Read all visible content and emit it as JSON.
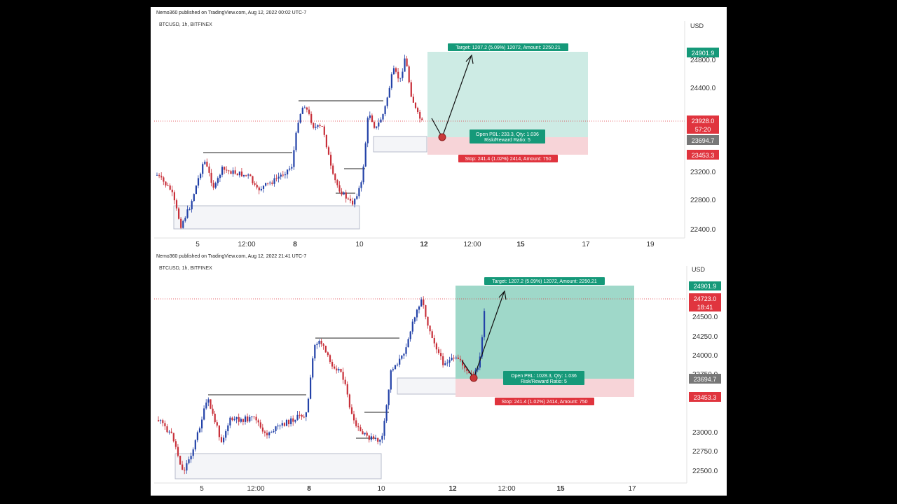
{
  "chart_data": [
    {
      "type": "candlestick",
      "header": "Nemo360 published on TradingView.com, Aug 12, 2022 00:02 UTC-7",
      "symbol": "BTCUSD, 1h, BITFINEX",
      "currency": "USD",
      "y_ticks": [
        "24800.0",
        "24400.0",
        "24000.0",
        "23600.0",
        "23200.0",
        "22800.0",
        "22400.0"
      ],
      "x_ticks": [
        "5",
        "12:00",
        "8",
        "10",
        "12",
        "12:00",
        "15",
        "17",
        "19"
      ],
      "bold_x_ticks": [
        "8",
        "12",
        "15"
      ],
      "price_tags": {
        "target": "24901.9",
        "last": "23928.0",
        "countdown": "57:20",
        "entry": "23694.7",
        "stop": "23453.3"
      },
      "labels": {
        "target": "Target: 1207.2 (5.09%) 12072, Amount: 2250.21",
        "open": "Open PBL: 233.3, Qty: 1.036",
        "rr": "Risk/Reward Ratio: 5",
        "stop": "Stop: 241.4 (1.02%) 2414, Amount: 750"
      },
      "ylim": [
        22300,
        25100
      ],
      "colors": {
        "up": "#2342a8",
        "down": "#c8303a",
        "target_fill": "#cdebe4",
        "stop_fill": "#f7d4d8",
        "target_tag": "#159979",
        "stop_tag": "#e0343e",
        "entry_tag": "#777777"
      }
    },
    {
      "type": "candlestick",
      "header": "Nemo360 published on TradingView.com, Aug 12, 2022 21:41 UTC-7",
      "symbol": "BTCUSD, 1h, BITFINEX",
      "currency": "USD",
      "y_ticks": [
        "24500.0",
        "24250.0",
        "24000.0",
        "23750.0",
        "23500.0",
        "23250.0",
        "23000.0",
        "22750.0",
        "22500.0"
      ],
      "x_ticks": [
        "5",
        "12:00",
        "8",
        "10",
        "12",
        "12:00",
        "15",
        "17"
      ],
      "bold_x_ticks": [
        "8",
        "12",
        "15"
      ],
      "price_tags": {
        "target": "24901.9",
        "last": "24723.0",
        "countdown": "18:41",
        "entry": "23694.7",
        "stop": "23453.3"
      },
      "labels": {
        "target": "Target: 1207.2 (5.09%) 12072, Amount: 2250.21",
        "open": "Open PBL: 1028.3, Qty: 1.036",
        "rr": "Risk/Reward Ratio: 5",
        "stop": "Stop: 241.4 (1.02%) 2414, Amount: 750"
      },
      "ylim": [
        22400,
        25000
      ],
      "colors": {
        "up": "#2342a8",
        "down": "#c8303a",
        "target_fill": "#9fd8c9",
        "stop_fill": "#f7d4d8",
        "target_tag": "#159979",
        "stop_tag": "#e0343e",
        "entry_tag": "#777777"
      }
    }
  ]
}
